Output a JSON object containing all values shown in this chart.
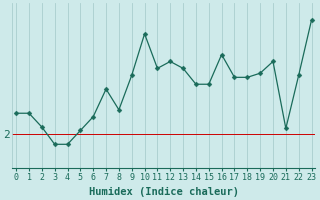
{
  "xlabel": "Humidex (Indice chaleur)",
  "x_values": [
    0,
    1,
    2,
    3,
    4,
    5,
    6,
    7,
    8,
    9,
    10,
    11,
    12,
    13,
    14,
    15,
    16,
    17,
    18,
    19,
    20,
    21,
    22,
    23
  ],
  "y_values": [
    2.3,
    2.3,
    2.1,
    1.85,
    1.85,
    2.05,
    2.25,
    2.65,
    2.35,
    2.85,
    3.45,
    2.95,
    3.05,
    2.95,
    2.72,
    2.72,
    3.15,
    2.82,
    2.82,
    2.88,
    3.05,
    2.08,
    2.85,
    3.65
  ],
  "line_color": "#1a6b5a",
  "marker": "D",
  "marker_size": 2.5,
  "background_color": "#ceeaea",
  "grid_color": "#aacece",
  "ytick_label": "2",
  "ytick_value": 2.0,
  "ylim": [
    1.5,
    3.9
  ],
  "xlim": [
    -0.3,
    23.3
  ],
  "hline_y": 2.0,
  "hline_color": "#cc0000",
  "font_color": "#1a6b5a",
  "tick_fontsize": 6,
  "label_fontsize": 7.5
}
